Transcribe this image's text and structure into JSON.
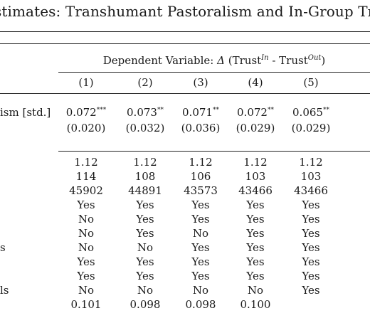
{
  "title": "stimates: Transhumant Pastoralism and In-Group Tr",
  "dependent_variable": {
    "prefix": "Dependent Variable:",
    "delta": "Δ",
    "open": "(Trust",
    "sup_in": "In",
    "minus": "- Trust",
    "sup_out": "Out",
    "close": ")"
  },
  "columns": [
    "(1)",
    "(2)",
    "(3)",
    "(4)",
    "(5)"
  ],
  "main_row": {
    "label": "ism [std.]",
    "coefs": [
      "0.072",
      "0.073",
      "0.071",
      "0.072",
      "0.065"
    ],
    "stars": [
      "***",
      "**",
      "**",
      "**",
      "**"
    ],
    "ses": [
      "(0.020)",
      "(0.032)",
      "(0.036)",
      "(0.029)",
      "(0.029)"
    ]
  },
  "stats_rows": [
    {
      "label": "",
      "values": [
        "1.12",
        "1.12",
        "1.12",
        "1.12",
        "1.12"
      ]
    },
    {
      "label": "",
      "values": [
        "114",
        "108",
        "106",
        "103",
        "103"
      ]
    },
    {
      "label": "",
      "values": [
        "45902",
        "44891",
        "43573",
        "43466",
        "43466"
      ]
    },
    {
      "label": "",
      "values": [
        "Yes",
        "Yes",
        "Yes",
        "Yes",
        "Yes"
      ]
    },
    {
      "label": "",
      "values": [
        "No",
        "Yes",
        "Yes",
        "Yes",
        "Yes"
      ]
    },
    {
      "label": "",
      "values": [
        "No",
        "Yes",
        "No",
        "Yes",
        "Yes"
      ]
    },
    {
      "label": "s",
      "values": [
        "No",
        "No",
        "Yes",
        "Yes",
        "Yes"
      ]
    },
    {
      "label": "",
      "values": [
        "Yes",
        "Yes",
        "Yes",
        "Yes",
        "Yes"
      ]
    },
    {
      "label": "",
      "values": [
        "Yes",
        "Yes",
        "Yes",
        "Yes",
        "Yes"
      ]
    },
    {
      "label": "ls",
      "values": [
        "No",
        "No",
        "No",
        "No",
        "Yes"
      ]
    },
    {
      "label": "",
      "values": [
        "0.101",
        "0.098",
        "0.098",
        "0.100",
        ""
      ]
    }
  ]
}
